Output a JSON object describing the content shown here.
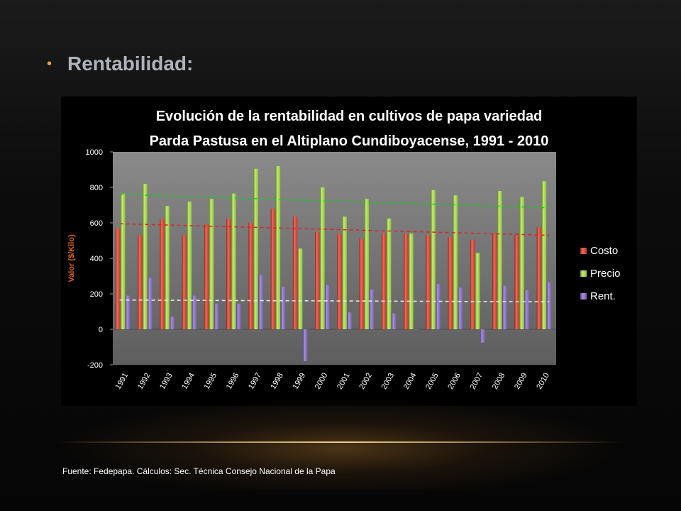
{
  "slide": {
    "bullet": "•",
    "title": "Rentabilidad:",
    "source": "Fuente: Fedepapa.  Cálculos: Sec. Técnica Consejo Nacional de la Papa"
  },
  "colors": {
    "costo": "#c0392b",
    "precio": "#8fc33a",
    "rent": "#7b5fb0",
    "trend_costo": "#d42a2a",
    "trend_precio": "#22c42a",
    "trend_rent": "#e6e6e6",
    "plot_bg": "#7a7a7a",
    "axis_title": "#e3661f"
  },
  "chart_data": {
    "type": "bar",
    "title_line1": "Evolución de la rentabilidad en cultivos de papa variedad",
    "title_line2": "Parda Pastusa en el Altiplano Cundiboyacense, 1991 - 2010",
    "ylabel": "Valor ($/Kilo)",
    "xlabel": "",
    "ylim": [
      -200,
      1000
    ],
    "yticks": [
      "1000",
      "800",
      "600",
      "400",
      "200",
      "0",
      "-200"
    ],
    "ytick_values": [
      1000,
      800,
      600,
      400,
      200,
      0,
      -200
    ],
    "categories": [
      "1991",
      "1992",
      "1993",
      "1994",
      "1995",
      "1996",
      "1997",
      "1998",
      "1999",
      "2000",
      "2001",
      "2002",
      "2003",
      "2004",
      "2005",
      "2006",
      "2007",
      "2008",
      "2009",
      "2010"
    ],
    "series": [
      {
        "name": "Costo",
        "values": [
          570,
          530,
          620,
          530,
          590,
          620,
          600,
          680,
          635,
          550,
          540,
          510,
          540,
          540,
          530,
          520,
          505,
          540,
          530,
          575
        ]
      },
      {
        "name": "Precio",
        "values": [
          765,
          820,
          695,
          720,
          735,
          765,
          905,
          920,
          455,
          800,
          635,
          735,
          625,
          540,
          785,
          755,
          430,
          780,
          745,
          835
        ]
      },
      {
        "name": "Rent.",
        "values": [
          190,
          290,
          70,
          190,
          145,
          145,
          305,
          240,
          -180,
          250,
          95,
          225,
          90,
          0,
          255,
          235,
          -75,
          245,
          220,
          265
        ]
      }
    ],
    "trendlines": [
      {
        "series": "Costo",
        "start": 595,
        "end": 530
      },
      {
        "series": "Precio",
        "start": 760,
        "end": 685
      },
      {
        "series": "Rent.",
        "start": 165,
        "end": 155
      }
    ],
    "legend_position": "right",
    "grid": false
  }
}
